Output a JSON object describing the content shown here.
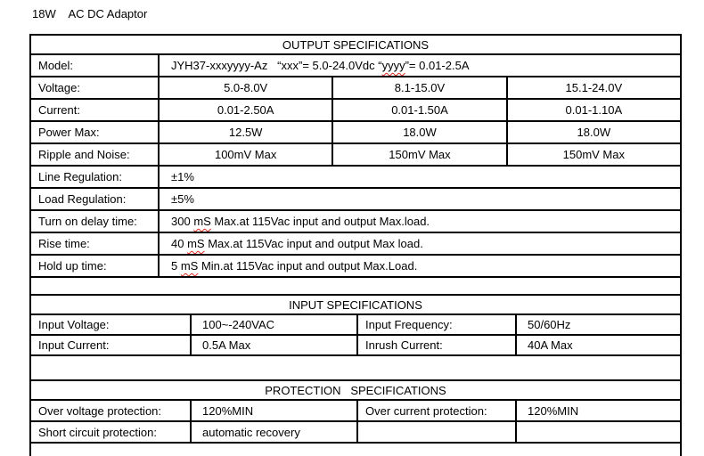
{
  "title": "18W    AC DC Adaptor",
  "colors": {
    "border": "#000000",
    "text": "#000000",
    "spellcheck_underline": "#e02b20"
  },
  "output": {
    "header": "OUTPUT SPECIFICATIONS",
    "model_label": "Model:",
    "model_value_pre": "JYH37-xxxyyyy-Az   “xxx”= 5.0-24.0Vdc “",
    "model_value_wavy": "yyyy",
    "model_value_post": "”= 0.01-2.5A",
    "rows3": [
      {
        "label": "Voltage:",
        "values": [
          "5.0-8.0V",
          "8.1-15.0V",
          "15.1-24.0V"
        ]
      },
      {
        "label": "Current:",
        "values": [
          "0.01-2.50A",
          "0.01-1.50A",
          "0.01-1.10A"
        ]
      },
      {
        "label": "Power Max:",
        "values": [
          "12.5W",
          "18.0W",
          "18.0W"
        ]
      },
      {
        "label": "Ripple and Noise:",
        "values": [
          "100mV Max",
          "150mV Max",
          "150mV Max"
        ]
      }
    ],
    "rows_wide": [
      {
        "label": "Line Regulation:",
        "pre": "±1%",
        "wavy": "",
        "post": ""
      },
      {
        "label": "Load Regulation:",
        "pre": "±5%",
        "wavy": "",
        "post": ""
      },
      {
        "label": "Turn on delay time:",
        "pre": "300 ",
        "wavy": "mS",
        "post": " Max.at 115Vac input and output Max.load."
      },
      {
        "label": "Rise time:",
        "pre": "40 ",
        "wavy": "mS",
        "post": " Max.at 115Vac input and output Max load."
      },
      {
        "label": "Hold up time:",
        "pre": "5 ",
        "wavy": "mS",
        "post": " Min.at 115Vac input and output Max.Load."
      }
    ]
  },
  "input": {
    "header": "INPUT SPECIFICATIONS",
    "rows": [
      {
        "c1": "Input Voltage:",
        "c2": "100~-240VAC",
        "c3": "Input Frequency:",
        "c4": "50/60Hz"
      },
      {
        "c1": "Input Current:",
        "c2": "0.5A Max",
        "c3": "Inrush Current:",
        "c4": "40A Max"
      }
    ]
  },
  "protection": {
    "header": "PROTECTION   SPECIFICATIONS",
    "rows": [
      {
        "c1": "Over voltage protection:",
        "c2": "120%MIN",
        "c3": "Over current protection:",
        "c4": "120%MIN"
      },
      {
        "c1": "Short circuit protection:",
        "c2": "automatic recovery",
        "c3": "",
        "c4": ""
      }
    ]
  }
}
